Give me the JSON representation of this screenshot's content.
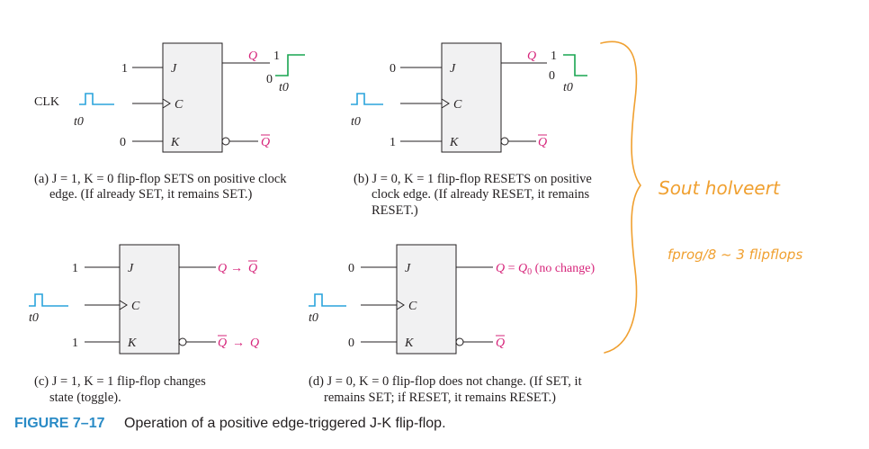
{
  "clk_label": "CLK",
  "t0": "t0",
  "ff": {
    "j": "J",
    "k": "K",
    "c": "C"
  },
  "q": "Q",
  "qbar": "Q",
  "panel_a": {
    "j_in": "1",
    "k_in": "0",
    "q_hi": "1",
    "q_lo": "0",
    "caption": [
      "(a) J = 1, K = 0 flip-flop SETS on positive clock",
      "edge. (If already SET, it remains SET.)"
    ]
  },
  "panel_b": {
    "j_in": "0",
    "k_in": "1",
    "q_hi": "1",
    "q_lo": "0",
    "caption": [
      "(b) J = 0, K = 1 flip-flop RESETS on positive",
      "clock edge. (If already RESET, it remains",
      "RESET.)"
    ]
  },
  "panel_c": {
    "j_in": "1",
    "k_in": "1",
    "arrow": "→",
    "caption": [
      "(c) J = 1, K = 1 flip-flop changes",
      "state (toggle)."
    ]
  },
  "panel_d": {
    "j_in": "0",
    "k_in": "0",
    "q_out_eq": "=",
    "q_out_sub": "0",
    "q_out_note": "(no change)",
    "caption": [
      "(d) J = 0, K = 0 flip-flop does not change. (If SET, it",
      "remains SET; if RESET, it remains RESET.)"
    ]
  },
  "figure": {
    "number": "FIGURE 7–17",
    "title": "Operation of a positive edge-triggered J-K flip-flop."
  },
  "handwritten": {
    "line1": "Sout holveert",
    "line2": "fprog/8 ~ 3 flipflops"
  },
  "colors": {
    "clock": "#2aa4dc",
    "output": "#18a550",
    "q_label": "#d6247a",
    "figure_no": "#2a8bc6",
    "handwriting": "#f0a030"
  }
}
